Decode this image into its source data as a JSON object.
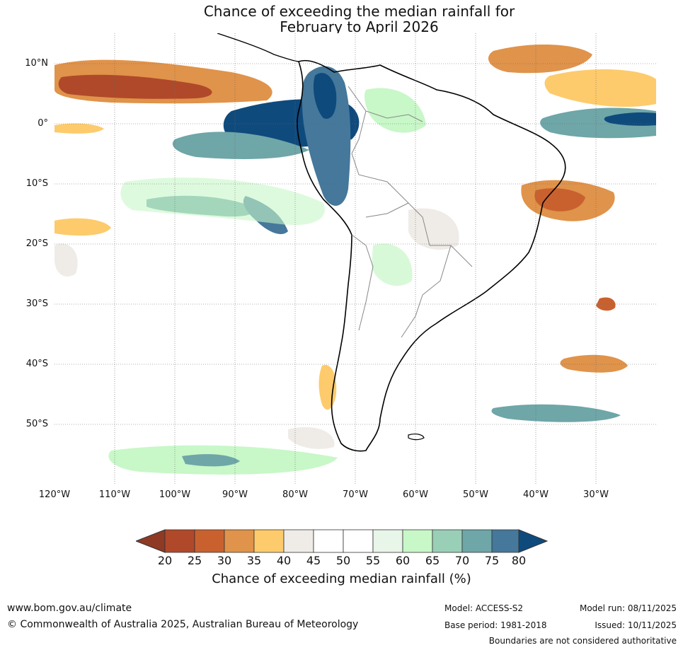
{
  "title": {
    "line1": "Chance of exceeding the median rainfall for",
    "line2": "February to April 2026"
  },
  "map": {
    "lat_labels": [
      "10°N",
      "0°",
      "10°S",
      "20°S",
      "30°S",
      "40°S",
      "50°S"
    ],
    "lon_labels": [
      "120°W",
      "110°W",
      "100°W",
      "90°W",
      "80°W",
      "70°W",
      "60°W",
      "50°W",
      "40°W",
      "30°W"
    ],
    "colors": {
      "below_20": "#8e3a25",
      "c20_25": "#b0492a",
      "c25_30": "#c9612f",
      "c30_35": "#e0934a",
      "c35_40": "#fdcb6c",
      "c40_45": "#efece8",
      "c45_55": "#ffffff",
      "c55_60": "#e8f5e9",
      "c60_65": "#c8f7c8",
      "c65_70": "#99cfb7",
      "c70_75": "#6fa6a8",
      "c75_80": "#45789a",
      "above_80": "#0f4a7d"
    }
  },
  "colorbar": {
    "ticks": [
      "20",
      "25",
      "30",
      "35",
      "40",
      "45",
      "50",
      "55",
      "60",
      "65",
      "70",
      "75",
      "80"
    ],
    "label": "Chance of exceeding median rainfall (%)"
  },
  "footer": {
    "website": "www.bom.gov.au/climate",
    "copyright": "© Commonwealth of Australia 2025, Australian Bureau of Meteorology",
    "model": "Model: ACCESS-S2",
    "base_period": "Base period: 1981-2018",
    "model_run": "Model run: 08/11/2025",
    "issued": "Issued: 10/11/2025",
    "disclaimer": "Boundaries are not considered authoritative"
  }
}
